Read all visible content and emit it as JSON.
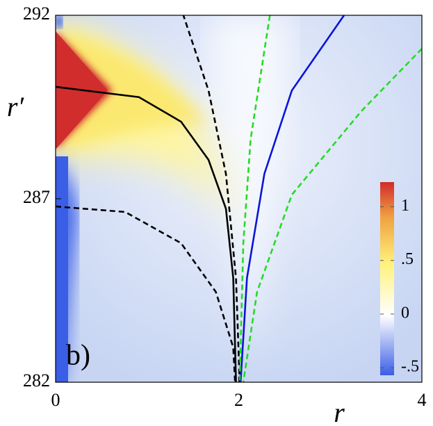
{
  "chart_data": {
    "type": "line",
    "panel_label": "b)",
    "xlabel": "r",
    "ylabel": "r′",
    "xlim": [
      0,
      4
    ],
    "xticks": [
      0,
      2,
      4
    ],
    "ylim": [
      282,
      292
    ],
    "yticks": [
      282,
      287,
      292
    ],
    "series": [
      {
        "color": "#000000",
        "dash": false,
        "x": [
          0,
          0.91,
          1.37,
          1.67,
          1.86,
          1.94,
          1.97
        ],
        "values": [
          290.05,
          289.77,
          289.1,
          288.06,
          286.73,
          284.84,
          282.0
        ]
      },
      {
        "color": "#000000",
        "dash": true,
        "x": [
          1.39,
          1.67,
          1.86,
          1.97,
          2.01
        ],
        "values": [
          292.04,
          289.95,
          287.68,
          284.84,
          282.0
        ]
      },
      {
        "color": "#000000",
        "dash": true,
        "x": [
          0,
          0.76,
          1.37,
          1.75,
          1.94,
          1.96
        ],
        "values": [
          286.79,
          286.64,
          285.79,
          284.46,
          282.95,
          282.0
        ]
      },
      {
        "color": "#0a14d8",
        "dash": false,
        "x": [
          3.15,
          2.58,
          2.28,
          2.09,
          2.02
        ],
        "values": [
          292.0,
          289.95,
          287.68,
          284.84,
          282.0
        ]
      },
      {
        "color": "#22dd22",
        "dash": true,
        "x": [
          2.34,
          2.13,
          2.05,
          2.01
        ],
        "values": [
          292.0,
          288.63,
          285.79,
          282.0
        ]
      },
      {
        "color": "#22dd22",
        "dash": true,
        "x": [
          4.0,
          3.34,
          2.58,
          2.2,
          2.05
        ],
        "values": [
          291.09,
          289.39,
          287.11,
          284.46,
          282.0
        ]
      }
    ],
    "colorbar": {
      "lim": [
        -0.57,
        1.23
      ],
      "ticks": [
        {
          "value": -0.5,
          "label": "-.5"
        },
        0,
        {
          "value": 0.5,
          "label": ".5"
        },
        1
      ]
    }
  }
}
